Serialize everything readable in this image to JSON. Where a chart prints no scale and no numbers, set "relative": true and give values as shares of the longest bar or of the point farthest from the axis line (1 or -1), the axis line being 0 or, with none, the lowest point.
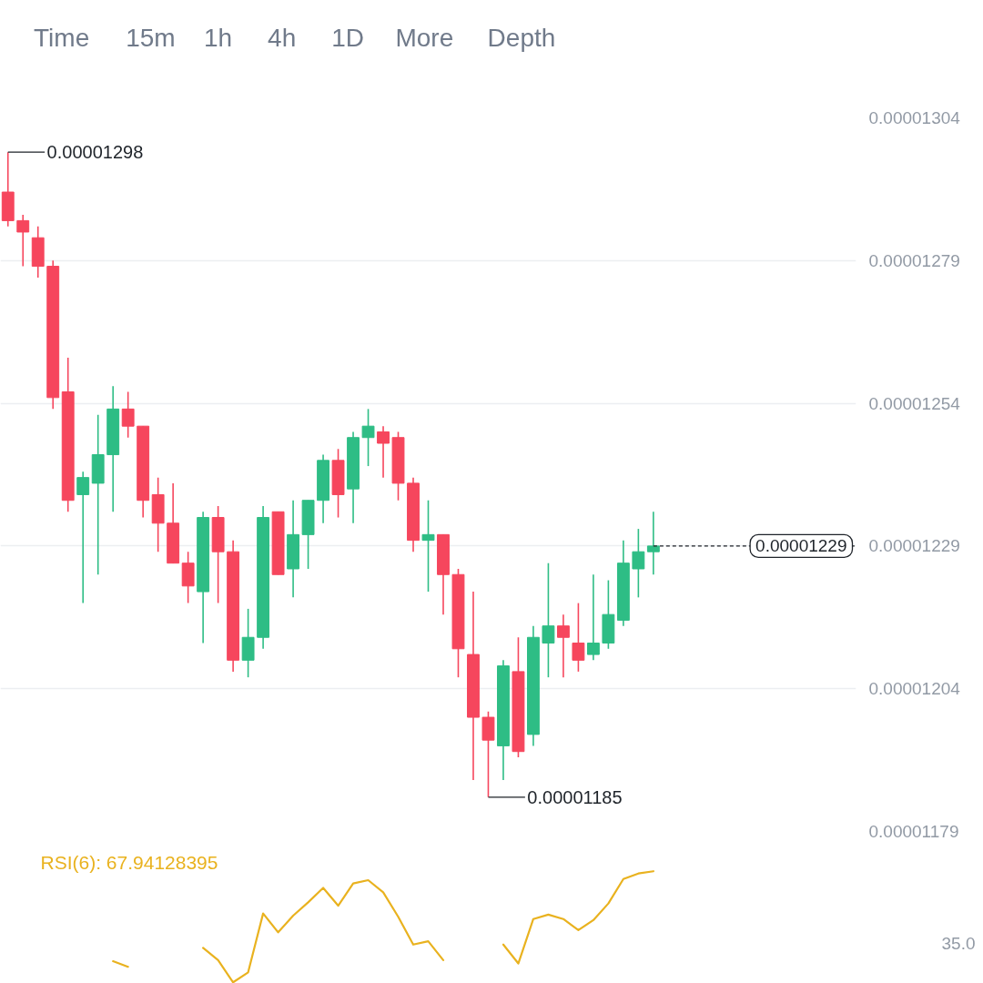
{
  "chart_data": [
    {
      "type": "candlestick",
      "categories": [
        null,
        null,
        null,
        null,
        null,
        null,
        null,
        null,
        null,
        null,
        null,
        null,
        null,
        null,
        null,
        null,
        null,
        null,
        null,
        null,
        null,
        null,
        null,
        null,
        null,
        null,
        null,
        null,
        null,
        null,
        null,
        null,
        null,
        null,
        null,
        null,
        null,
        null,
        null,
        null,
        null,
        null,
        null,
        null,
        null,
        null,
        null,
        null,
        null,
        null,
        null,
        null,
        null,
        null,
        null,
        null,
        null
      ],
      "ohlc": [
        [
          1.291e-05,
          1.298e-05,
          1.285e-05,
          1.286e-05
        ],
        [
          1.286e-05,
          1.287e-05,
          1.278e-05,
          1.284e-05
        ],
        [
          1.283e-05,
          1.285e-05,
          1.276e-05,
          1.278e-05
        ],
        [
          1.278e-05,
          1.279e-05,
          1.253e-05,
          1.255e-05
        ],
        [
          1.256e-05,
          1.262e-05,
          1.235e-05,
          1.237e-05
        ],
        [
          1.238e-05,
          1.242e-05,
          1.219e-05,
          1.241e-05
        ],
        [
          1.24e-05,
          1.252e-05,
          1.224e-05,
          1.245e-05
        ],
        [
          1.245e-05,
          1.257e-05,
          1.235e-05,
          1.253e-05
        ],
        [
          1.253e-05,
          1.256e-05,
          1.248e-05,
          1.25e-05
        ],
        [
          1.25e-05,
          1.25e-05,
          1.234e-05,
          1.237e-05
        ],
        [
          1.238e-05,
          1.241e-05,
          1.228e-05,
          1.233e-05
        ],
        [
          1.233e-05,
          1.24e-05,
          1.226e-05,
          1.226e-05
        ],
        [
          1.226e-05,
          1.228e-05,
          1.219e-05,
          1.222e-05
        ],
        [
          1.221e-05,
          1.235e-05,
          1.212e-05,
          1.234e-05
        ],
        [
          1.234e-05,
          1.236e-05,
          1.219e-05,
          1.228e-05
        ],
        [
          1.228e-05,
          1.23e-05,
          1.207e-05,
          1.209e-05
        ],
        [
          1.209e-05,
          1.218e-05,
          1.206e-05,
          1.213e-05
        ],
        [
          1.213e-05,
          1.236e-05,
          1.211e-05,
          1.234e-05
        ],
        [
          1.235e-05,
          1.235e-05,
          1.224e-05,
          1.224e-05
        ],
        [
          1.225e-05,
          1.237e-05,
          1.22e-05,
          1.231e-05
        ],
        [
          1.231e-05,
          1.237e-05,
          1.225e-05,
          1.237e-05
        ],
        [
          1.237e-05,
          1.245e-05,
          1.233e-05,
          1.244e-05
        ],
        [
          1.244e-05,
          1.246e-05,
          1.234e-05,
          1.238e-05
        ],
        [
          1.239e-05,
          1.249e-05,
          1.233e-05,
          1.248e-05
        ],
        [
          1.248e-05,
          1.253e-05,
          1.243e-05,
          1.25e-05
        ],
        [
          1.249e-05,
          1.25e-05,
          1.241e-05,
          1.247e-05
        ],
        [
          1.248e-05,
          1.249e-05,
          1.237e-05,
          1.24e-05
        ],
        [
          1.24e-05,
          1.241e-05,
          1.228e-05,
          1.23e-05
        ],
        [
          1.23e-05,
          1.237e-05,
          1.221e-05,
          1.231e-05
        ],
        [
          1.231e-05,
          1.231e-05,
          1.217e-05,
          1.224e-05
        ],
        [
          1.224e-05,
          1.225e-05,
          1.206e-05,
          1.211e-05
        ],
        [
          1.21e-05,
          1.221e-05,
          1.188e-05,
          1.199e-05
        ],
        [
          1.199e-05,
          1.2e-05,
          1.185e-05,
          1.195e-05
        ],
        [
          1.194e-05,
          1.209e-05,
          1.188e-05,
          1.208e-05
        ],
        [
          1.207e-05,
          1.213e-05,
          1.192e-05,
          1.193e-05
        ],
        [
          1.196e-05,
          1.215e-05,
          1.194e-05,
          1.213e-05
        ],
        [
          1.212e-05,
          1.226e-05,
          1.206e-05,
          1.215e-05
        ],
        [
          1.215e-05,
          1.217e-05,
          1.206e-05,
          1.213e-05
        ],
        [
          1.212e-05,
          1.219e-05,
          1.207e-05,
          1.209e-05
        ],
        [
          1.21e-05,
          1.224e-05,
          1.209e-05,
          1.212e-05
        ],
        [
          1.212e-05,
          1.223e-05,
          1.211e-05,
          1.217e-05
        ],
        [
          1.216e-05,
          1.23e-05,
          1.215e-05,
          1.226e-05
        ],
        [
          1.225e-05,
          1.232e-05,
          1.22e-05,
          1.228e-05
        ],
        [
          1.228e-05,
          1.235e-05,
          1.224e-05,
          1.229e-05
        ],
        null,
        null,
        null,
        null,
        null,
        null,
        null,
        null,
        null,
        null,
        null,
        null,
        null
      ],
      "colors": [
        "#f6465d",
        "#f6465d",
        "#f6465d",
        "#f6465d",
        "#f6465d",
        "#2ebd85",
        "#2ebd85",
        "#2ebd85",
        "#f6465d",
        "#f6465d",
        "#f6465d",
        "#f6465d",
        "#f6465d",
        "#2ebd85",
        "#f6465d",
        "#f6465d",
        "#2ebd85",
        "#2ebd85",
        "#f6465d",
        "#2ebd85",
        "#2ebd85",
        "#2ebd85",
        "#f6465d",
        "#2ebd85",
        "#2ebd85",
        "#f6465d",
        "#f6465d",
        "#f6465d",
        "#2ebd85",
        "#f6465d",
        "#f6465d",
        "#f6465d",
        "#f6465d",
        "#2ebd85",
        "#f6465d",
        "#2ebd85",
        "#2ebd85",
        "#f6465d",
        "#f6465d",
        "#2ebd85",
        "#2ebd85",
        "#2ebd85",
        "#2ebd85",
        "#2ebd85",
        null,
        null,
        null,
        null,
        null,
        null,
        null,
        null,
        null,
        null,
        null,
        null,
        null
      ],
      "ylim": [
        1.179e-05,
        1.304e-05
      ],
      "yticks": [
        {
          "value": 1.179e-05,
          "label": "0.00001179"
        },
        {
          "value": 1.204e-05,
          "label": "0.00001204"
        },
        {
          "value": 1.229e-05,
          "label": "0.00001229"
        },
        {
          "value": 1.254e-05,
          "label": "0.00001254"
        },
        {
          "value": 1.279e-05,
          "label": "0.00001279"
        },
        {
          "value": 1.304e-05,
          "label": "0.00001304"
        }
      ],
      "grid": "y",
      "tick_labels": "y",
      "ref_lines": [
        {
          "axis": "y",
          "value": 1.229e-05,
          "label": "0.00001229",
          "color": "#1e2329",
          "line_style": "dashed"
        }
      ],
      "annotations": [
        "Time",
        "15m",
        "1h",
        "4h",
        "1D",
        "More",
        "Depth",
        "0.00001298",
        "0.00001185"
      ]
    },
    {
      "type": "line",
      "title": "RSI(6): 67.94128395",
      "relative": true,
      "tick_labels": false,
      "categories": [
        null,
        null,
        null,
        null,
        null,
        null,
        null,
        null,
        null,
        null,
        null,
        null,
        null,
        null,
        null,
        null,
        null,
        null,
        null,
        null,
        null,
        null,
        null,
        null,
        null,
        null,
        null,
        null,
        null,
        null,
        null,
        null,
        null,
        null,
        null,
        null,
        null,
        null,
        null,
        null,
        null,
        null,
        null,
        null,
        null,
        null,
        null,
        null,
        null,
        null,
        null,
        null,
        null,
        null,
        null,
        null,
        null
      ],
      "series": [
        {
          "color": "#e9b21f",
          "values": [
            null,
            null,
            null,
            null,
            null,
            null,
            null,
            0.19,
            0.14,
            null,
            null,
            null,
            null,
            0.31,
            0.2,
            0,
            0.09,
            0.62,
            0.45,
            0.6,
            0.72,
            0.85,
            0.69,
            0.89,
            0.92,
            0.81,
            0.59,
            0.34,
            0.37,
            0.2,
            null,
            null,
            null,
            0.34,
            0.17,
            0.57,
            0.61,
            0.57,
            0.47,
            0.56,
            0.71,
            0.93,
            0.98,
            1,
            null,
            null,
            null,
            null,
            null,
            null,
            null,
            null,
            null,
            null,
            null,
            null,
            null
          ]
        }
      ],
      "annotations": [
        "35.0"
      ]
    }
  ]
}
